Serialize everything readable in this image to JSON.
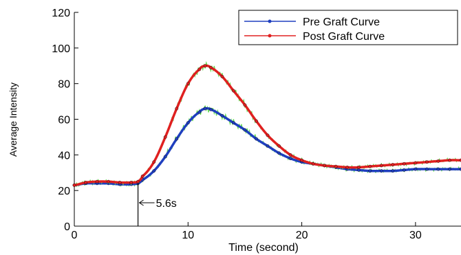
{
  "chart_data": {
    "type": "line",
    "xlabel": "Time (second)",
    "ylabel": "Average Intensity",
    "xlim": [
      0,
      34
    ],
    "ylim": [
      0,
      120
    ],
    "x_ticks": [
      0,
      10,
      20,
      30
    ],
    "y_ticks": [
      0,
      20,
      40,
      60,
      80,
      100,
      120
    ],
    "grid": false,
    "legend_position": "top-right",
    "annotation": {
      "text": "5.6s",
      "x": 5.6
    },
    "colors": {
      "pre": "#1f3fbf",
      "post": "#e02020",
      "fit": "#66dd55"
    },
    "series": [
      {
        "name": "Pre Graft Curve",
        "color": "#1f3fbf",
        "x": [
          0,
          1,
          2,
          3,
          4,
          5,
          5.6,
          6,
          7,
          8,
          9,
          10,
          11,
          11.5,
          12,
          13,
          14,
          15,
          16,
          17,
          18,
          19,
          20,
          21,
          22,
          23,
          24,
          25,
          26,
          27,
          28,
          29,
          30,
          31,
          32,
          33,
          34
        ],
        "values": [
          23,
          24,
          24,
          24,
          23.5,
          23.5,
          24,
          26,
          31,
          39,
          49,
          58,
          64,
          66,
          65.5,
          62,
          58,
          54,
          49,
          45,
          41,
          38,
          36,
          35,
          34,
          33,
          32,
          31.5,
          31,
          31,
          31,
          31.5,
          32,
          32,
          32,
          32,
          32
        ]
      },
      {
        "name": "Post Graft Curve",
        "color": "#e02020",
        "x": [
          0,
          1,
          2,
          3,
          4,
          5,
          5.6,
          6,
          7,
          8,
          9,
          10,
          11,
          11.5,
          12,
          13,
          14,
          15,
          16,
          17,
          18,
          19,
          20,
          21,
          22,
          23,
          24,
          25,
          26,
          27,
          28,
          29,
          30,
          31,
          32,
          33,
          34
        ],
        "values": [
          23,
          24.5,
          25,
          25,
          24.5,
          24.5,
          25,
          28,
          36,
          50,
          66,
          80,
          88,
          90,
          89,
          84,
          76,
          68,
          59,
          51,
          45,
          40,
          37,
          35,
          34,
          33.5,
          33,
          33,
          33.5,
          34,
          34.5,
          35,
          35.5,
          36,
          36.5,
          37,
          37
        ]
      }
    ]
  }
}
